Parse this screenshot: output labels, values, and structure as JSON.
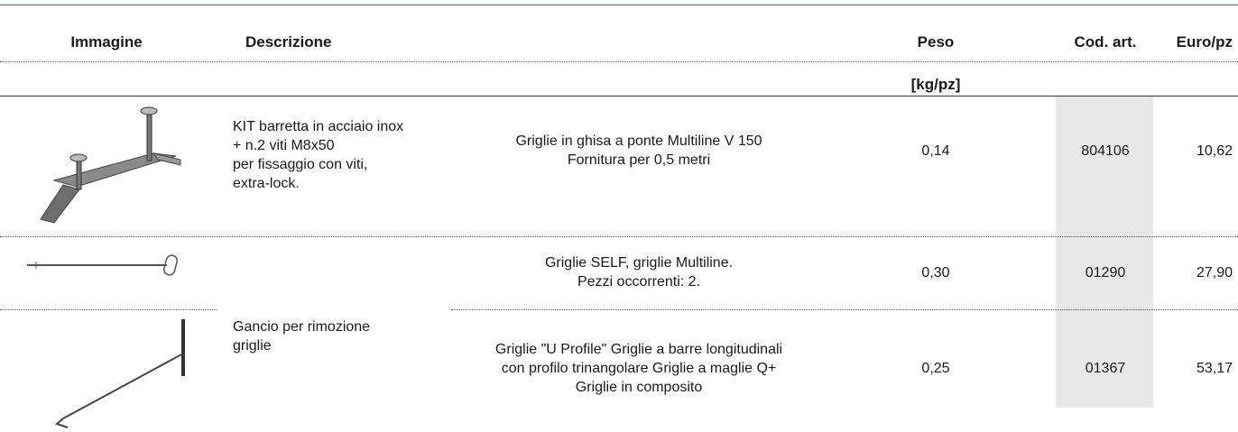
{
  "header": {
    "columns": [
      "Immagine",
      "Descrizione",
      "Peso",
      "Cod. art.",
      "Euro/pz"
    ],
    "unit": "[kg/pz]"
  },
  "rows": [
    {
      "description": [
        "KIT barretta in acciaio inox",
        "+ n.2 viti M8x50",
        "per fissaggio con viti,",
        "extra-lock."
      ],
      "application": [
        "Griglie in ghisa a ponte Multiline V 150",
        "Fornitura per 0,5 metri"
      ],
      "weight": "0,14",
      "code": "804106",
      "price": "10,62"
    },
    {
      "application": [
        "Griglie SELF, griglie Multiline.",
        "Pezzi occorrenti: 2."
      ],
      "weight": "0,30",
      "code": "01290",
      "price": "27,90"
    },
    {
      "description": [
        "Gancio per rimozione",
        "griglie"
      ],
      "application": [
        "Griglie \"U Profile\" Griglie a barre longitudinali",
        "con profilo trinangolare Griglie a maglie Q+",
        "Griglie in composito"
      ],
      "weight": "0,25",
      "code": "01367",
      "price": "53,17"
    }
  ]
}
